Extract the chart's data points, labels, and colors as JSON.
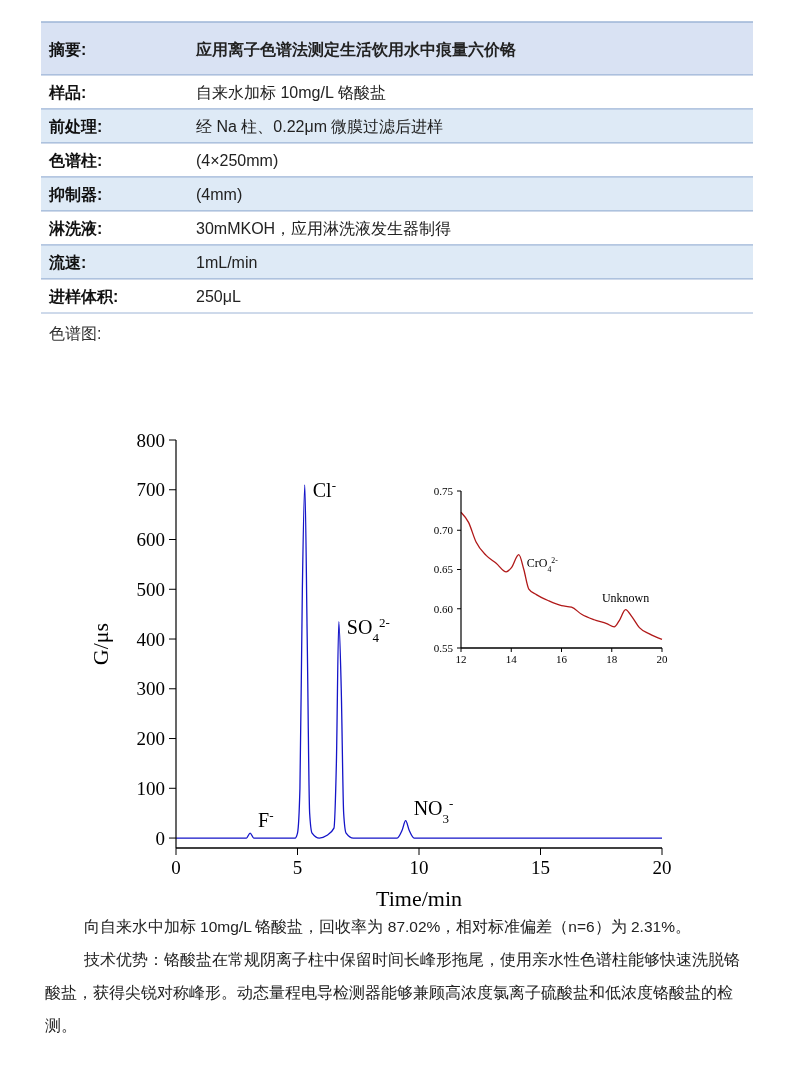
{
  "chart_data": [
    {
      "type": "other",
      "annotations": [
        "摘要:",
        "应用离子色谱法测定生活饮用水中痕量六价铬",
        "样品:",
        "自来水加标 10mg/L 铬酸盐",
        "前处理:",
        "经 Na 柱、0.22μm 微膜过滤后进样",
        "色谱柱:",
        "(4×250mm)",
        "抑制器:",
        "(4mm)",
        "淋洗液:",
        "30mMKOH，应用淋洗液发生器制得",
        "流速:",
        "1mL/min",
        "进样体积:",
        "250μL",
        "色谱图:"
      ]
    },
    {
      "type": "line",
      "xlabel": "Time/min",
      "ylabel": "G/μs",
      "xlim": [
        0,
        20
      ],
      "xticks": [
        0,
        5,
        10,
        15,
        20
      ],
      "ylim": [
        -20,
        800
      ],
      "yticks": [
        0,
        100,
        200,
        300,
        400,
        500,
        600,
        700,
        800
      ],
      "series": [
        {
          "color": "#1414c8",
          "x": [
            0,
            2.9,
            3.05,
            3.2,
            4.9,
            5.0,
            5.1,
            5.2,
            5.3,
            5.4,
            5.5,
            5.6,
            5.9,
            6.2,
            6.5,
            6.6,
            6.7,
            6.8,
            6.9,
            7.0,
            7.3,
            9.1,
            9.3,
            9.45,
            9.6,
            9.8,
            20
          ],
          "values": [
            0,
            0,
            10,
            0,
            0,
            10,
            100,
            500,
            710,
            400,
            50,
            10,
            0,
            5,
            20,
            150,
            435,
            300,
            50,
            10,
            0,
            0,
            15,
            35,
            15,
            0,
            0
          ]
        }
      ],
      "annotations": [
        {
          "text": "F$^{-}$",
          "x": 3.05,
          "y": 10
        },
        {
          "text": "Cl$^{-}$",
          "x": 5.3,
          "y": 710
        },
        {
          "text": "SO$_{4}$$^{2-}$",
          "x": 6.7,
          "y": 435
        },
        {
          "text": "NO$_{3}$$^{-}$",
          "x": 9.45,
          "y": 35
        },
        "向自来水中加标 10mg/L 铬酸盐，回收率为 87.02%，相对标准偏差（n=6）为 2.31%。",
        "技术优势：铬酸盐在常规阴离子柱中保留时间长峰形拖尾，使用亲水性色谱柱能够快速洗脱铬酸盐，获得尖锐对称峰形。动态量程电导检测器能够兼顾高浓度氯离子硫酸盐和低浓度铬酸盐的检测。"
      ]
    },
    {
      "type": "line",
      "xlim": [
        12,
        20
      ],
      "xticks": [
        12,
        14,
        16,
        18,
        20
      ],
      "ylim": [
        0.55,
        0.75
      ],
      "yticks": [
        {
          "value": 0.55,
          "label": "0.55"
        },
        {
          "value": 0.6,
          "label": "0.60"
        },
        {
          "value": 0.65,
          "label": "0.65"
        },
        {
          "value": 0.7,
          "label": "0.70"
        },
        {
          "value": 0.75,
          "label": "0.75"
        }
      ],
      "series": [
        {
          "color": "#b01818",
          "x": [
            12,
            12.3,
            12.6,
            13,
            13.4,
            13.8,
            14.0,
            14.3,
            14.5,
            14.7,
            15,
            15.5,
            16,
            16.4,
            16.8,
            17.3,
            17.8,
            18.1,
            18.3,
            18.55,
            18.8,
            19.1,
            19.5,
            20
          ],
          "values": [
            0.723,
            0.71,
            0.685,
            0.668,
            0.658,
            0.647,
            0.652,
            0.669,
            0.65,
            0.625,
            0.618,
            0.61,
            0.604,
            0.602,
            0.593,
            0.586,
            0.581,
            0.577,
            0.585,
            0.599,
            0.59,
            0.576,
            0.568,
            0.561
          ]
        }
      ],
      "annotations": [
        {
          "text": "CrO$_{4}$$^{2-}$",
          "x": 14.3,
          "y": 0.669
        },
        {
          "text": "Unknown",
          "x": 18.55,
          "y": 0.599
        }
      ]
    }
  ]
}
